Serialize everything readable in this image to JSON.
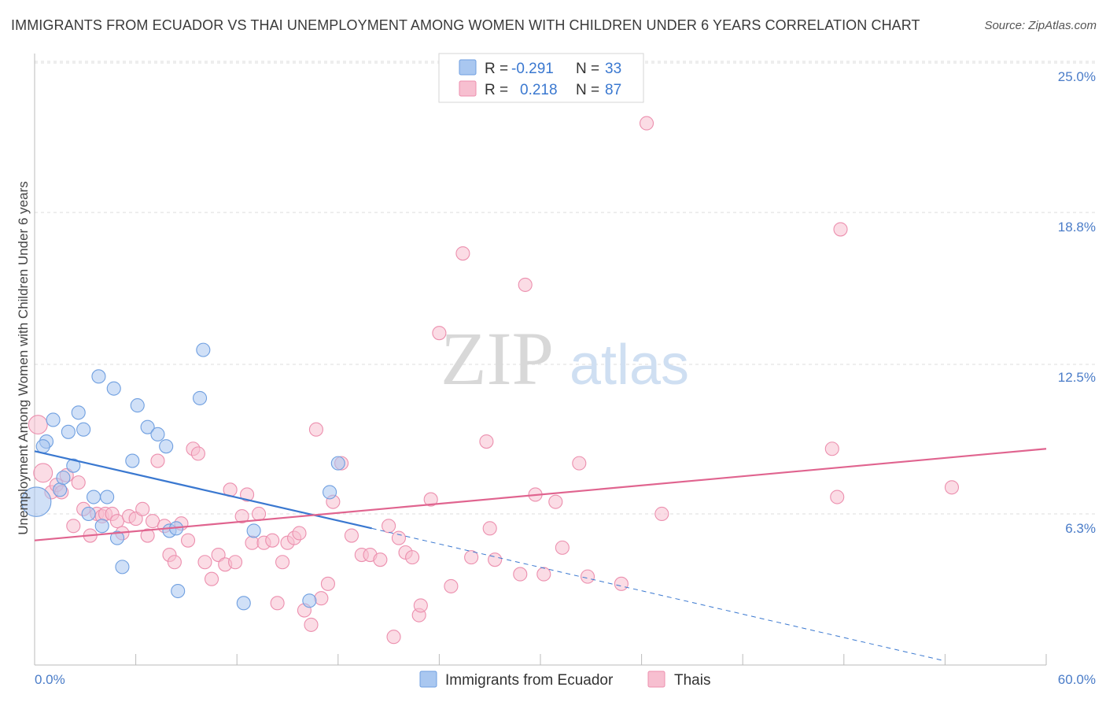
{
  "title": "IMMIGRANTS FROM ECUADOR VS THAI UNEMPLOYMENT AMONG WOMEN WITH CHILDREN UNDER 6 YEARS CORRELATION CHART",
  "source": "Source: ZipAtlas.com",
  "watermark": {
    "zip": "ZIP",
    "atlas": "atlas"
  },
  "colors": {
    "ecuador_fill": "#a9c7f0",
    "ecuador_stroke": "#6f9fe0",
    "ecuador_line": "#3a78d0",
    "thai_fill": "#f7bfd0",
    "thai_stroke": "#ec8fae",
    "thai_line": "#e0648f",
    "tick_text": "#4a7cc8",
    "grid": "#dddddd"
  },
  "legend": {
    "rows": [
      {
        "r_label": "R =",
        "r_value": "-0.291",
        "n_label": "N =",
        "n_value": "33"
      },
      {
        "r_label": "R =",
        "r_value": "0.218",
        "n_label": "N =",
        "n_value": "87"
      }
    ]
  },
  "chart_data": {
    "type": "scatter",
    "title": "IMMIGRANTS FROM ECUADOR VS THAI UNEMPLOYMENT AMONG WOMEN WITH CHILDREN UNDER 6 YEARS CORRELATION CHART",
    "xlabel": "",
    "ylabel": "Unemployment Among Women with Children Under 6 years",
    "xlim": [
      0,
      60
    ],
    "ylim": [
      0,
      25
    ],
    "x_tick_labels": [
      "0.0%",
      "60.0%"
    ],
    "y_ticks": [
      6.3,
      12.5,
      18.8,
      25.0
    ],
    "y_tick_labels": [
      "6.3%",
      "12.5%",
      "18.8%",
      "25.0%"
    ],
    "grid": true,
    "legend_position": "top-center",
    "series": [
      {
        "name": "Immigrants from Ecuador",
        "r": -0.291,
        "n": 33,
        "trend": {
          "x0": 0,
          "y0": 8.9,
          "x1": 20,
          "y1": 5.7,
          "dashed_to_x": 54,
          "dashed_to_y": 0.2
        },
        "points": [
          [
            0.1,
            6.8,
            2.2
          ],
          [
            0.7,
            9.3,
            1
          ],
          [
            1.1,
            10.2,
            1
          ],
          [
            1.5,
            7.3,
            1
          ],
          [
            1.7,
            7.8,
            1
          ],
          [
            2.0,
            9.7,
            1
          ],
          [
            2.3,
            8.3,
            1
          ],
          [
            2.6,
            10.5,
            1
          ],
          [
            2.9,
            9.8,
            1
          ],
          [
            3.2,
            6.3,
            1
          ],
          [
            3.5,
            7.0,
            1
          ],
          [
            3.8,
            12.0,
            1
          ],
          [
            4.0,
            5.8,
            1
          ],
          [
            4.3,
            7.0,
            1
          ],
          [
            4.7,
            11.5,
            1
          ],
          [
            4.9,
            5.3,
            1
          ],
          [
            5.2,
            4.1,
            1
          ],
          [
            5.8,
            8.5,
            1
          ],
          [
            6.1,
            10.8,
            1
          ],
          [
            6.7,
            9.9,
            1
          ],
          [
            7.3,
            9.6,
            1
          ],
          [
            7.8,
            9.1,
            1
          ],
          [
            8.0,
            5.6,
            1
          ],
          [
            8.4,
            5.7,
            1
          ],
          [
            8.5,
            3.1,
            1
          ],
          [
            9.8,
            11.1,
            1
          ],
          [
            10.0,
            13.1,
            1
          ],
          [
            12.4,
            2.6,
            1
          ],
          [
            13.0,
            5.6,
            1
          ],
          [
            16.3,
            2.7,
            1
          ],
          [
            17.5,
            7.2,
            1
          ],
          [
            18.0,
            8.4,
            1
          ],
          [
            0.5,
            9.1,
            1
          ]
        ]
      },
      {
        "name": "Thais",
        "r": 0.218,
        "n": 87,
        "trend": {
          "x0": 0,
          "y0": 5.2,
          "x1": 60,
          "y1": 9.0
        },
        "points": [
          [
            0.2,
            10.0,
            1.4
          ],
          [
            0.5,
            8.0,
            1.4
          ],
          [
            1.0,
            7.2,
            1
          ],
          [
            1.3,
            7.5,
            1
          ],
          [
            1.6,
            7.2,
            1
          ],
          [
            1.9,
            7.9,
            1
          ],
          [
            2.3,
            5.8,
            1
          ],
          [
            2.6,
            7.6,
            1
          ],
          [
            2.9,
            6.5,
            1
          ],
          [
            3.3,
            5.4,
            1
          ],
          [
            3.7,
            6.3,
            1
          ],
          [
            4.0,
            6.2,
            1
          ],
          [
            4.2,
            6.3,
            1
          ],
          [
            4.6,
            6.3,
            1
          ],
          [
            4.9,
            6.0,
            1
          ],
          [
            5.2,
            5.5,
            1
          ],
          [
            5.6,
            6.2,
            1
          ],
          [
            6.0,
            6.1,
            1
          ],
          [
            6.4,
            6.5,
            1
          ],
          [
            6.7,
            5.4,
            1
          ],
          [
            7.0,
            6.0,
            1
          ],
          [
            7.3,
            8.5,
            1
          ],
          [
            7.7,
            5.8,
            1
          ],
          [
            8.0,
            4.6,
            1
          ],
          [
            8.3,
            4.3,
            1
          ],
          [
            8.7,
            5.9,
            1
          ],
          [
            9.1,
            5.2,
            1
          ],
          [
            9.4,
            9.0,
            1
          ],
          [
            9.7,
            8.8,
            1
          ],
          [
            10.1,
            4.3,
            1
          ],
          [
            10.5,
            3.6,
            1
          ],
          [
            10.9,
            4.6,
            1
          ],
          [
            11.3,
            4.2,
            1
          ],
          [
            11.6,
            7.3,
            1
          ],
          [
            11.9,
            4.3,
            1
          ],
          [
            12.3,
            6.2,
            1
          ],
          [
            12.6,
            7.1,
            1
          ],
          [
            12.9,
            5.1,
            1
          ],
          [
            13.3,
            6.3,
            1
          ],
          [
            13.6,
            5.1,
            1
          ],
          [
            14.1,
            5.2,
            1
          ],
          [
            14.4,
            2.6,
            1
          ],
          [
            14.7,
            4.3,
            1
          ],
          [
            15.0,
            5.1,
            1
          ],
          [
            15.4,
            5.3,
            1
          ],
          [
            15.7,
            5.5,
            1
          ],
          [
            16.0,
            2.3,
            1
          ],
          [
            16.4,
            1.7,
            1
          ],
          [
            16.7,
            9.8,
            1
          ],
          [
            17.0,
            2.8,
            1
          ],
          [
            17.4,
            3.4,
            1
          ],
          [
            17.7,
            6.8,
            1
          ],
          [
            18.2,
            8.4,
            1
          ],
          [
            18.8,
            5.4,
            1
          ],
          [
            19.4,
            4.6,
            1
          ],
          [
            19.9,
            4.6,
            1
          ],
          [
            20.5,
            4.4,
            1
          ],
          [
            21.0,
            5.8,
            1
          ],
          [
            21.3,
            1.2,
            1
          ],
          [
            21.6,
            5.3,
            1
          ],
          [
            22.0,
            4.7,
            1
          ],
          [
            22.4,
            4.5,
            1
          ],
          [
            22.8,
            2.1,
            1
          ],
          [
            22.9,
            2.5,
            1
          ],
          [
            23.5,
            6.9,
            1
          ],
          [
            24.0,
            13.8,
            1
          ],
          [
            24.7,
            3.3,
            1
          ],
          [
            25.4,
            17.1,
            1
          ],
          [
            25.9,
            4.5,
            1
          ],
          [
            26.8,
            9.3,
            1
          ],
          [
            27.0,
            5.7,
            1
          ],
          [
            27.3,
            4.4,
            1
          ],
          [
            28.8,
            3.8,
            1
          ],
          [
            29.1,
            15.8,
            1
          ],
          [
            29.7,
            7.1,
            1
          ],
          [
            30.2,
            3.8,
            1
          ],
          [
            30.9,
            6.8,
            1
          ],
          [
            31.3,
            4.9,
            1
          ],
          [
            32.3,
            8.4,
            1
          ],
          [
            32.8,
            3.7,
            1
          ],
          [
            34.8,
            3.4,
            1
          ],
          [
            36.3,
            22.5,
            1
          ],
          [
            37.2,
            6.3,
            1
          ],
          [
            47.3,
            9.0,
            1
          ],
          [
            47.6,
            7.0,
            1
          ],
          [
            47.8,
            18.1,
            1
          ],
          [
            54.4,
            7.4,
            1
          ]
        ]
      }
    ]
  }
}
